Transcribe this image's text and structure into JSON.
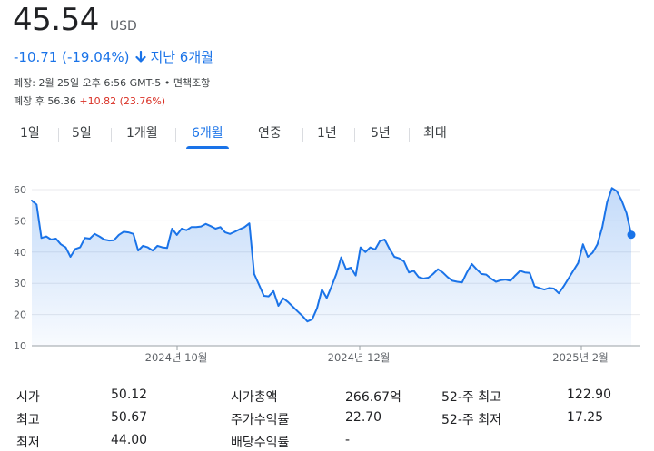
{
  "price": "45.54",
  "currency": "USD",
  "change": {
    "text": "-10.71 (-19.04%)",
    "period": "지난 6개월",
    "arrow_icon": "arrow-down-icon",
    "color": "#1a73e8"
  },
  "close_info": {
    "text": "폐장: 2월 25일 오후 6:56 GMT-5",
    "bullet": "•",
    "disclaimer": "면책조항"
  },
  "after_hours": {
    "label": "폐장 후",
    "price": "56.36",
    "change": "+10.82 (23.76%)",
    "change_color": "#d93025"
  },
  "tabs": [
    {
      "label": "1일"
    },
    {
      "label": "5일"
    },
    {
      "label": "1개월"
    },
    {
      "label": "6개월",
      "active": true
    },
    {
      "label": "연중"
    },
    {
      "label": "1년"
    },
    {
      "label": "5년"
    },
    {
      "label": "최대"
    }
  ],
  "chart_data": {
    "type": "area",
    "ylim": [
      10,
      60
    ],
    "y_ticks": [
      10,
      20,
      30,
      40,
      50,
      60
    ],
    "x_tick_labels": [
      "2024년 10월",
      "2024년 12월",
      "2025년 2월"
    ],
    "grid": true,
    "line_color": "#1a73e8",
    "values": [
      56.5,
      55.2,
      44.5,
      45.0,
      44.0,
      44.3,
      42.5,
      41.5,
      38.5,
      41.0,
      41.5,
      44.5,
      44.3,
      45.8,
      45.0,
      44.0,
      43.7,
      43.8,
      45.5,
      46.5,
      46.3,
      45.8,
      40.5,
      42.0,
      41.5,
      40.5,
      42.0,
      41.5,
      41.3,
      47.5,
      45.5,
      47.5,
      47.0,
      48.0,
      48.0,
      48.2,
      49.0,
      48.3,
      47.5,
      48.0,
      46.3,
      45.8,
      46.5,
      47.3,
      48.0,
      49.2,
      33.0,
      29.5,
      26.0,
      25.8,
      27.5,
      22.8,
      25.2,
      24.0,
      22.5,
      21.0,
      19.5,
      17.8,
      18.5,
      22.0,
      28.0,
      25.3,
      29.0,
      33.0,
      38.3,
      34.5,
      35.0,
      32.5,
      41.5,
      40.0,
      41.5,
      40.8,
      43.5,
      44.0,
      41.0,
      38.5,
      38.0,
      37.0,
      33.5,
      34.0,
      32.0,
      31.5,
      31.8,
      33.0,
      34.5,
      33.5,
      32.0,
      30.8,
      30.5,
      30.3,
      33.5,
      36.2,
      34.5,
      33.0,
      32.8,
      31.5,
      30.5,
      31.0,
      31.2,
      30.8,
      32.5,
      34.0,
      33.5,
      33.3,
      29.0,
      28.5,
      28.0,
      28.5,
      28.3,
      26.8,
      29.0,
      31.5,
      34.0,
      36.5,
      42.5,
      38.5,
      39.8,
      42.5,
      48.0,
      56.0,
      60.5,
      59.5,
      56.5,
      52.5,
      45.54
    ]
  },
  "stats": [
    {
      "label": "시가",
      "value": "50.12"
    },
    {
      "label": "최고",
      "value": "50.67"
    },
    {
      "label": "최저",
      "value": "44.00"
    },
    {
      "label": "시가총액",
      "value": "266.67억"
    },
    {
      "label": "주가수익률",
      "value": "22.70"
    },
    {
      "label": "배당수익률",
      "value": "-"
    },
    {
      "label": "52-주 최고",
      "value": "122.90"
    },
    {
      "label": "52-주 최저",
      "value": "17.25"
    }
  ]
}
